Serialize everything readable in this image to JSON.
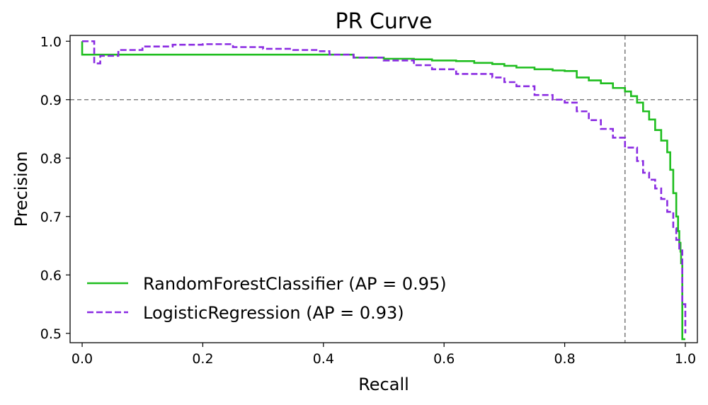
{
  "chart_data": {
    "type": "line",
    "title": "PR Curve",
    "xlabel": "Recall",
    "ylabel": "Precision",
    "xlim": [
      -0.02,
      1.02
    ],
    "ylim": [
      0.484,
      1.01
    ],
    "xticks": [
      0.0,
      0.2,
      0.4,
      0.6,
      0.8,
      1.0
    ],
    "xtick_labels": [
      "0.0",
      "0.2",
      "0.4",
      "0.6",
      "0.8",
      "1.0"
    ],
    "yticks": [
      0.5,
      0.6,
      0.7,
      0.8,
      0.9,
      1.0
    ],
    "ytick_labels": [
      "0.5",
      "0.6",
      "0.7",
      "0.8",
      "0.9",
      "1.0"
    ],
    "grid": false,
    "legend_position": "lower-left",
    "reference_lines": [
      {
        "orientation": "horizontal",
        "value": 0.9,
        "color": "#808080",
        "style": "dashed"
      },
      {
        "orientation": "vertical",
        "value": 0.9,
        "color": "#808080",
        "style": "dashed"
      }
    ],
    "series": [
      {
        "name": "RandomForestClassifier (AP = 0.95)",
        "color": "#1fbe1f",
        "dash": "solid",
        "step": true,
        "x": [
          0.0,
          0.0,
          0.015,
          0.3,
          0.45,
          0.45,
          0.5,
          0.55,
          0.58,
          0.62,
          0.65,
          0.68,
          0.7,
          0.72,
          0.75,
          0.78,
          0.8,
          0.82,
          0.84,
          0.86,
          0.88,
          0.9,
          0.91,
          0.92,
          0.93,
          0.94,
          0.95,
          0.96,
          0.97,
          0.975,
          0.98,
          0.985,
          0.988,
          0.99,
          0.992,
          0.993,
          0.995,
          1.0
        ],
        "y": [
          1.0,
          0.977,
          0.977,
          0.977,
          0.977,
          0.972,
          0.97,
          0.969,
          0.967,
          0.966,
          0.963,
          0.961,
          0.958,
          0.955,
          0.952,
          0.95,
          0.949,
          0.938,
          0.933,
          0.928,
          0.92,
          0.914,
          0.906,
          0.895,
          0.88,
          0.866,
          0.848,
          0.83,
          0.81,
          0.78,
          0.74,
          0.7,
          0.675,
          0.655,
          0.64,
          0.62,
          0.49,
          0.49
        ]
      },
      {
        "name": "LogisticRegression (AP = 0.93)",
        "color": "#8a2be2",
        "dash": "dashed",
        "step": true,
        "x": [
          0.0,
          0.005,
          0.02,
          0.02,
          0.03,
          0.06,
          0.1,
          0.15,
          0.2,
          0.25,
          0.3,
          0.35,
          0.39,
          0.41,
          0.45,
          0.5,
          0.55,
          0.58,
          0.62,
          0.65,
          0.68,
          0.7,
          0.72,
          0.75,
          0.78,
          0.8,
          0.82,
          0.84,
          0.86,
          0.88,
          0.9,
          0.92,
          0.93,
          0.94,
          0.95,
          0.96,
          0.97,
          0.98,
          0.985,
          0.99,
          0.995,
          1.0
        ],
        "y": [
          1.0,
          1.0,
          1.0,
          0.962,
          0.975,
          0.985,
          0.991,
          0.994,
          0.995,
          0.99,
          0.987,
          0.985,
          0.983,
          0.977,
          0.972,
          0.967,
          0.959,
          0.952,
          0.944,
          0.944,
          0.938,
          0.93,
          0.923,
          0.908,
          0.9,
          0.895,
          0.88,
          0.865,
          0.85,
          0.835,
          0.818,
          0.795,
          0.775,
          0.763,
          0.748,
          0.73,
          0.708,
          0.68,
          0.66,
          0.642,
          0.55,
          0.5
        ]
      }
    ]
  }
}
